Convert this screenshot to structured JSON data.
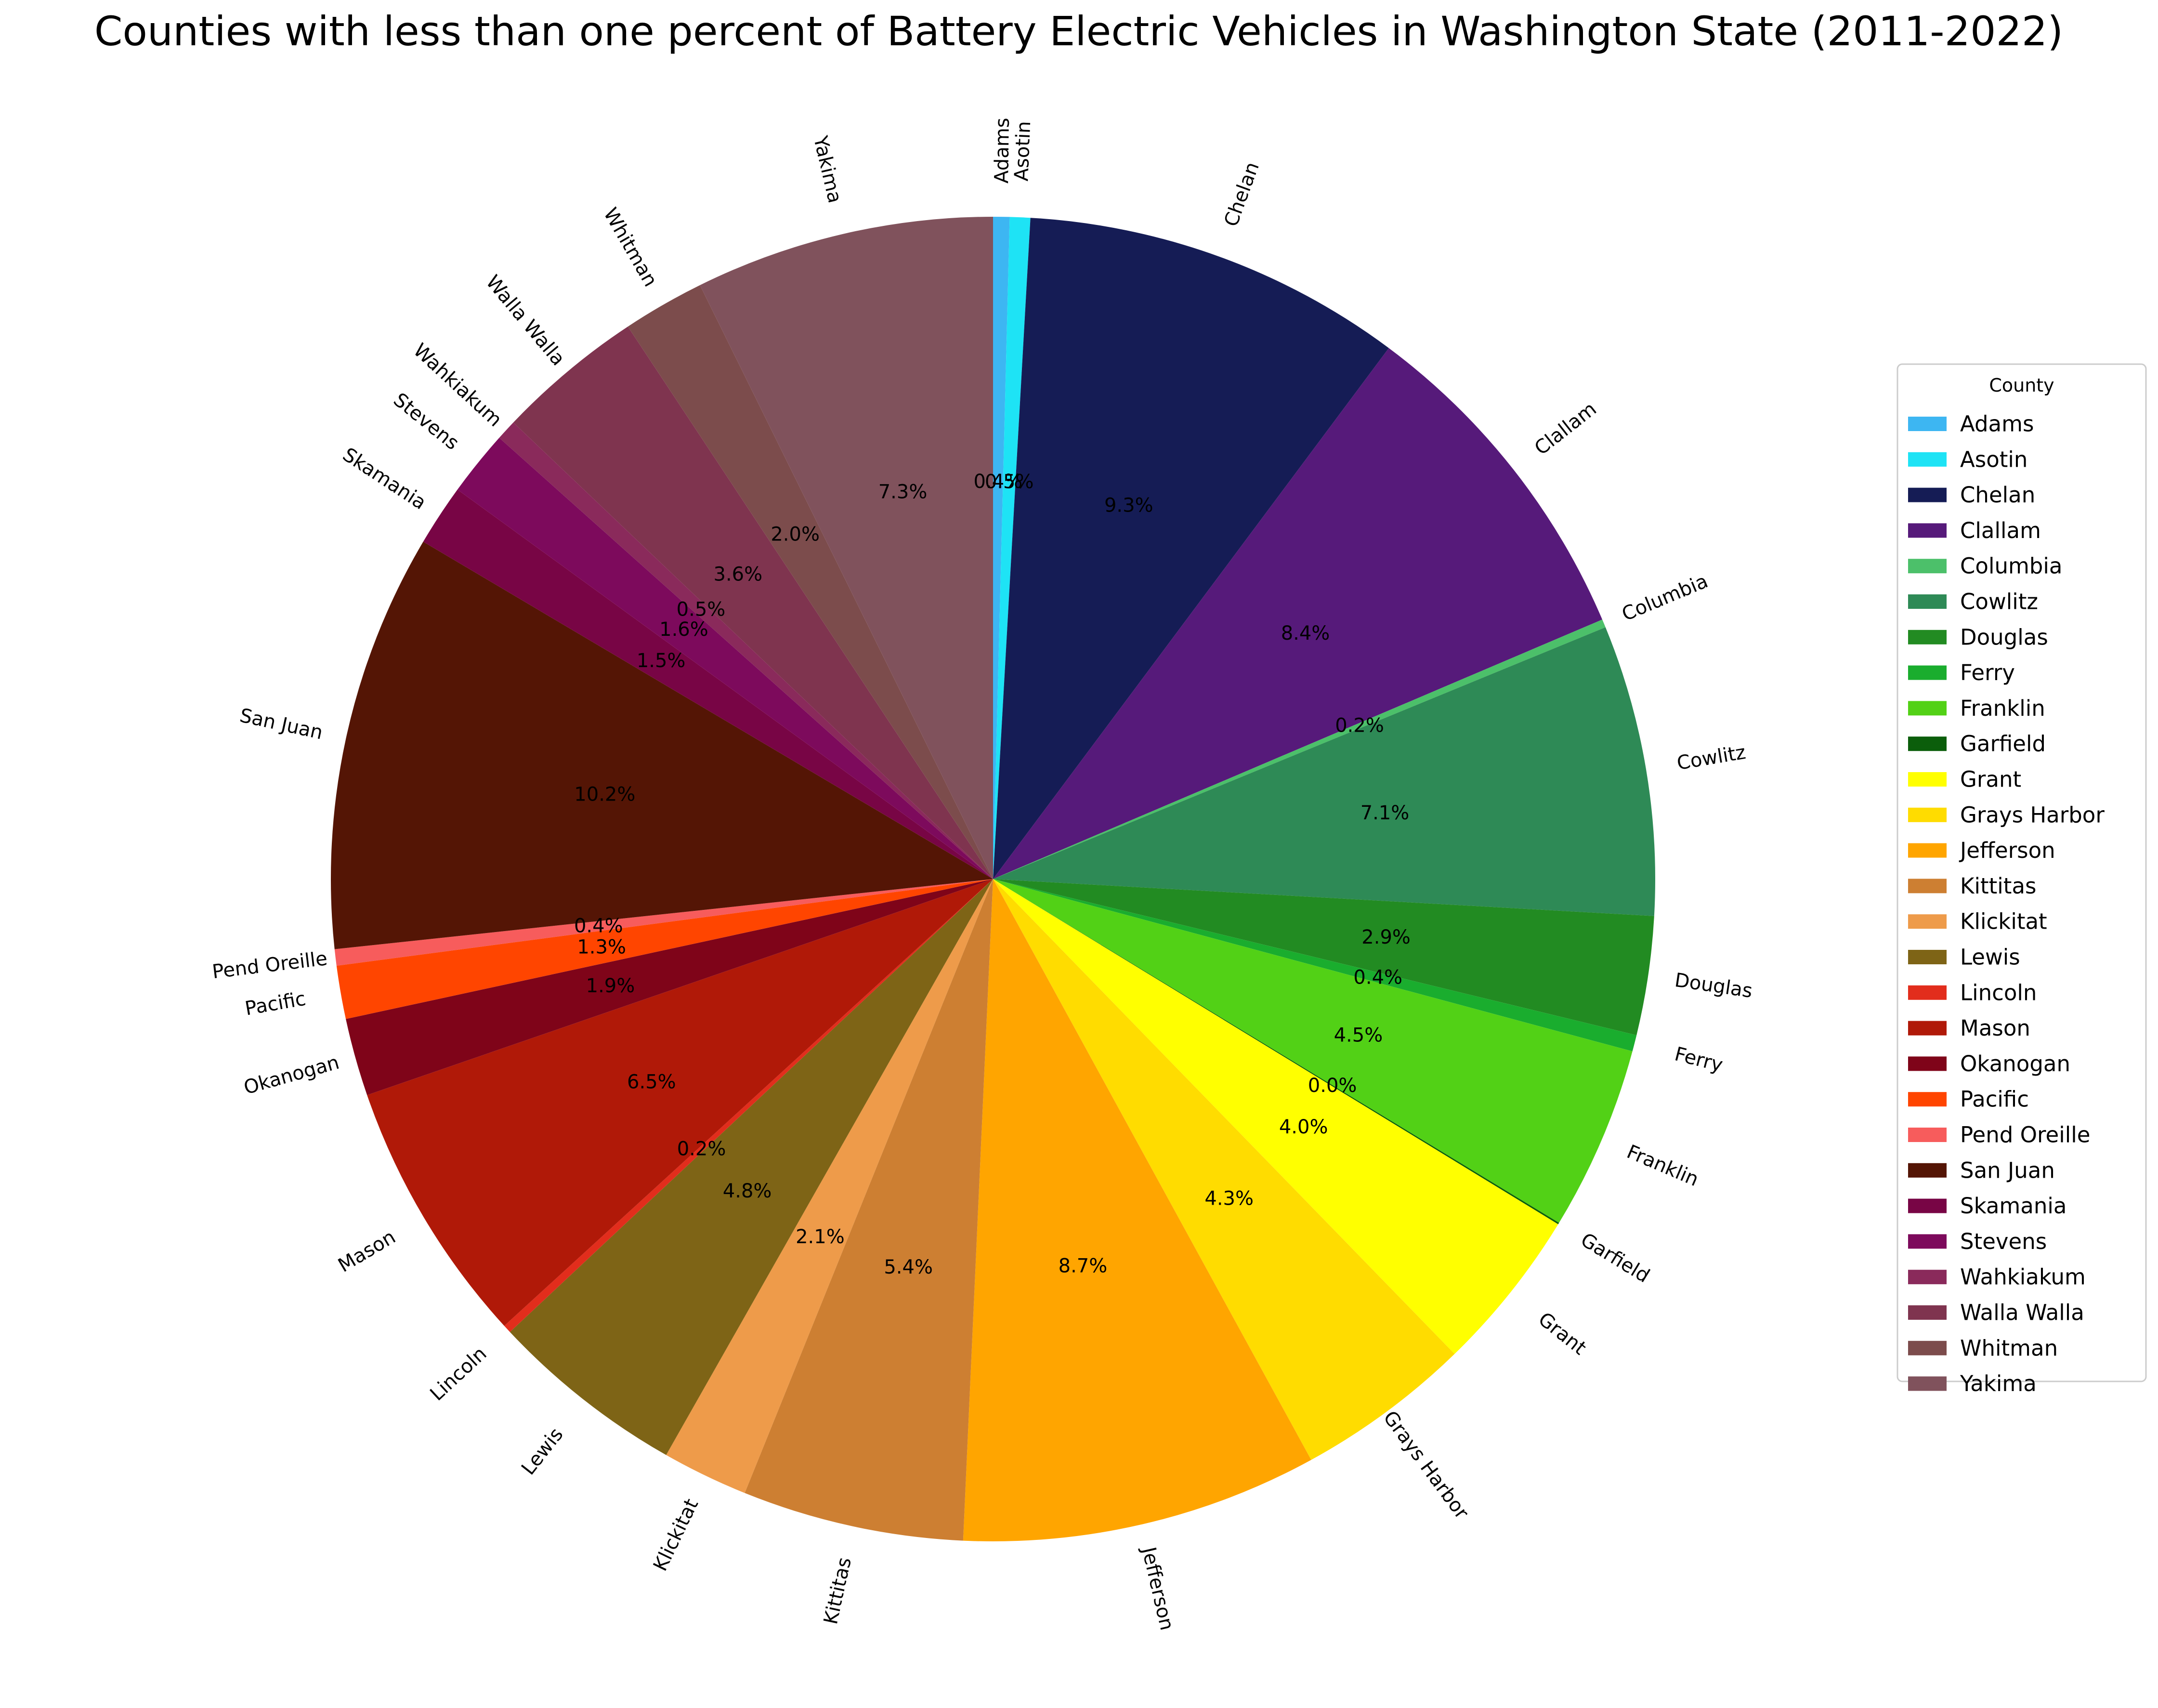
{
  "chart_data": {
    "type": "pie",
    "title": "Counties with less than one percent of Battery Electric Vehicles in Washington State (2011-2022)",
    "start_angle_deg": 90,
    "direction": "clockwise",
    "legend": {
      "title": "County",
      "placement": "center-right"
    },
    "slices": [
      {
        "label": "Adams",
        "percent": 0.4,
        "pct_text": "0.4%",
        "color": "#3db6f2"
      },
      {
        "label": "Asotin",
        "percent": 0.5,
        "pct_text": "0.5%",
        "color": "#1ee3f5"
      },
      {
        "label": "Chelan",
        "percent": 9.3,
        "pct_text": "9.3%",
        "color": "#151c55"
      },
      {
        "label": "Clallam",
        "percent": 8.4,
        "pct_text": "8.4%",
        "color": "#561a7a"
      },
      {
        "label": "Columbia",
        "percent": 0.2,
        "pct_text": "0.2%",
        "color": "#4cc06a"
      },
      {
        "label": "Cowlitz",
        "percent": 7.1,
        "pct_text": "7.1%",
        "color": "#2e8a56"
      },
      {
        "label": "Douglas",
        "percent": 2.9,
        "pct_text": "2.9%",
        "color": "#228b22"
      },
      {
        "label": "Ferry",
        "percent": 0.4,
        "pct_text": "0.4%",
        "color": "#1aad2e"
      },
      {
        "label": "Franklin",
        "percent": 4.5,
        "pct_text": "4.5%",
        "color": "#52d116"
      },
      {
        "label": "Garfield",
        "percent": 0.04,
        "pct_text": "0.0%",
        "color": "#0b5e0b"
      },
      {
        "label": "Grant",
        "percent": 4.0,
        "pct_text": "4.0%",
        "color": "#ffff00"
      },
      {
        "label": "Grays Harbor",
        "percent": 4.3,
        "pct_text": "4.3%",
        "color": "#ffdc00"
      },
      {
        "label": "Jefferson",
        "percent": 8.7,
        "pct_text": "8.7%",
        "color": "#ffa500"
      },
      {
        "label": "Kittitas",
        "percent": 5.4,
        "pct_text": "5.4%",
        "color": "#cd7f32"
      },
      {
        "label": "Klickitat",
        "percent": 2.1,
        "pct_text": "2.1%",
        "color": "#ee9b4a"
      },
      {
        "label": "Lewis",
        "percent": 4.8,
        "pct_text": "4.8%",
        "color": "#7e6416"
      },
      {
        "label": "Lincoln",
        "percent": 0.2,
        "pct_text": "0.2%",
        "color": "#e22d1c"
      },
      {
        "label": "Mason",
        "percent": 6.5,
        "pct_text": "6.5%",
        "color": "#b01908"
      },
      {
        "label": "Okanogan",
        "percent": 1.9,
        "pct_text": "1.9%",
        "color": "#7f0419"
      },
      {
        "label": "Pacific",
        "percent": 1.3,
        "pct_text": "1.3%",
        "color": "#ff4500"
      },
      {
        "label": "Pend Oreille",
        "percent": 0.4,
        "pct_text": "0.4%",
        "color": "#f75c5c"
      },
      {
        "label": "San Juan",
        "percent": 10.2,
        "pct_text": "10.2%",
        "color": "#541505"
      },
      {
        "label": "Skamania",
        "percent": 1.5,
        "pct_text": "1.5%",
        "color": "#780545"
      },
      {
        "label": "Stevens",
        "percent": 1.6,
        "pct_text": "1.6%",
        "color": "#7d0a5c"
      },
      {
        "label": "Wahkiakum",
        "percent": 0.5,
        "pct_text": "0.5%",
        "color": "#8a2a5b"
      },
      {
        "label": "Walla Walla",
        "percent": 3.6,
        "pct_text": "3.6%",
        "color": "#7f344f"
      },
      {
        "label": "Whitman",
        "percent": 2.0,
        "pct_text": "2.0%",
        "color": "#7c4c4c"
      },
      {
        "label": "Yakima",
        "percent": 7.3,
        "pct_text": "7.3%",
        "color": "#80525c"
      }
    ]
  }
}
